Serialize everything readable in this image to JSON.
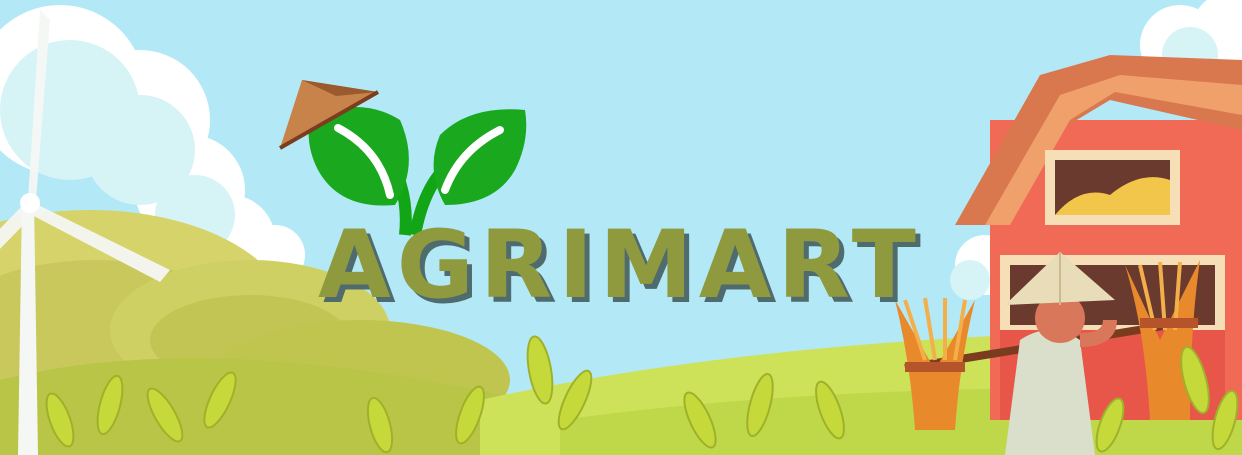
{
  "brand": {
    "name": "AGRIMART",
    "text_color": "#8f9a3f",
    "shadow_color": "#4f6b6e"
  },
  "logo": {
    "icon": "sprout-icon",
    "hat_icon": "conical-hat-icon",
    "color": "#1aa81e"
  },
  "palette": {
    "sky": "#b3e9f7",
    "barn_red": "#f06a55",
    "barn_roof": "#d9784e",
    "hill_yellow": "#d5d36a",
    "field_green": "#c9dc4e",
    "wheat": "#c6d93a"
  },
  "illustration": {
    "elements": [
      "clouds",
      "wind-turbine",
      "rolling-hills",
      "barn",
      "farmer-with-wheat-sheaves",
      "wheat-stalks"
    ]
  }
}
